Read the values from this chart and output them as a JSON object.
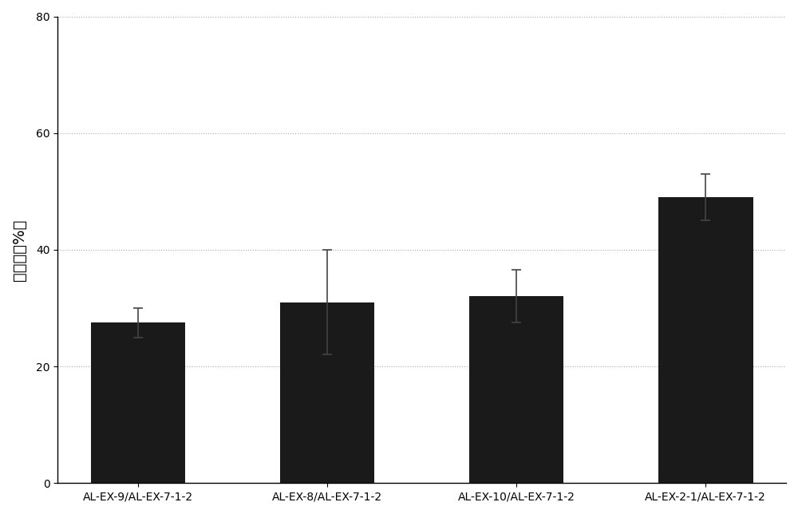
{
  "categories": [
    "AL-EX-9/AL-EX-7-1-2",
    "AL-EX-8/AL-EX-7-1-2",
    "AL-EX-10/AL-EX-7-1-2",
    "AL-EX-2-1/AL-EX-7-1-2"
  ],
  "values": [
    27.5,
    31.0,
    32.0,
    49.0
  ],
  "errors": [
    2.5,
    9.0,
    4.5,
    4.0
  ],
  "bar_color": "#1a1a1a",
  "bar_width": 0.5,
  "ylabel": "崩解率（%）",
  "ylim": [
    0,
    80
  ],
  "yticks": [
    0,
    20,
    40,
    60,
    80
  ],
  "grid_color": "#aaaaaa",
  "grid_linestyle": "dotted",
  "background_color": "#ffffff",
  "ylabel_fontsize": 14,
  "tick_fontsize": 10,
  "xlabel_fontsize": 10,
  "error_capsize": 4,
  "error_color": "#444444"
}
